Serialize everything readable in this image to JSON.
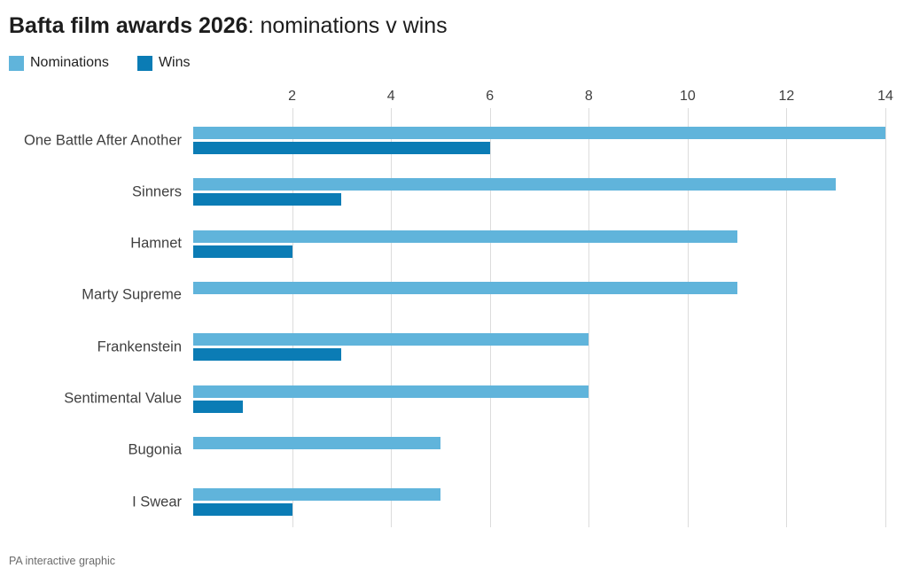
{
  "title": {
    "bold": "Bafta film awards 2026",
    "rest": ": nominations v wins"
  },
  "legend": {
    "nominations": "Nominations",
    "wins": "Wins"
  },
  "footer": "PA interactive graphic",
  "colors": {
    "nominations": "#60b4db",
    "wins": "#0b7cb5",
    "gridline": "#dcdcdc",
    "title_text": "#1d1d1d",
    "label_text": "#404040",
    "footer_text": "#6b6b6b"
  },
  "chart_data": {
    "type": "bar",
    "orientation": "horizontal",
    "title": "Bafta film awards 2026: nominations v wins",
    "categories": [
      "One Battle After Another",
      "Sinners",
      "Hamnet",
      "Marty Supreme",
      "Frankenstein",
      "Sentimental Value",
      "Bugonia",
      "I Swear"
    ],
    "series": [
      {
        "name": "Nominations",
        "color": "#60b4db",
        "values": [
          14,
          13,
          11,
          11,
          8,
          8,
          5,
          5
        ]
      },
      {
        "name": "Wins",
        "color": "#0b7cb5",
        "values": [
          6,
          3,
          2,
          0,
          3,
          1,
          0,
          2
        ]
      }
    ],
    "xlabel": "",
    "ylabel": "",
    "xlim": [
      0,
      14
    ],
    "xticks": [
      2,
      4,
      6,
      8,
      10,
      12,
      14
    ],
    "grid": "vertical-only",
    "legend_position": "top-left",
    "source": "PA interactive graphic"
  }
}
